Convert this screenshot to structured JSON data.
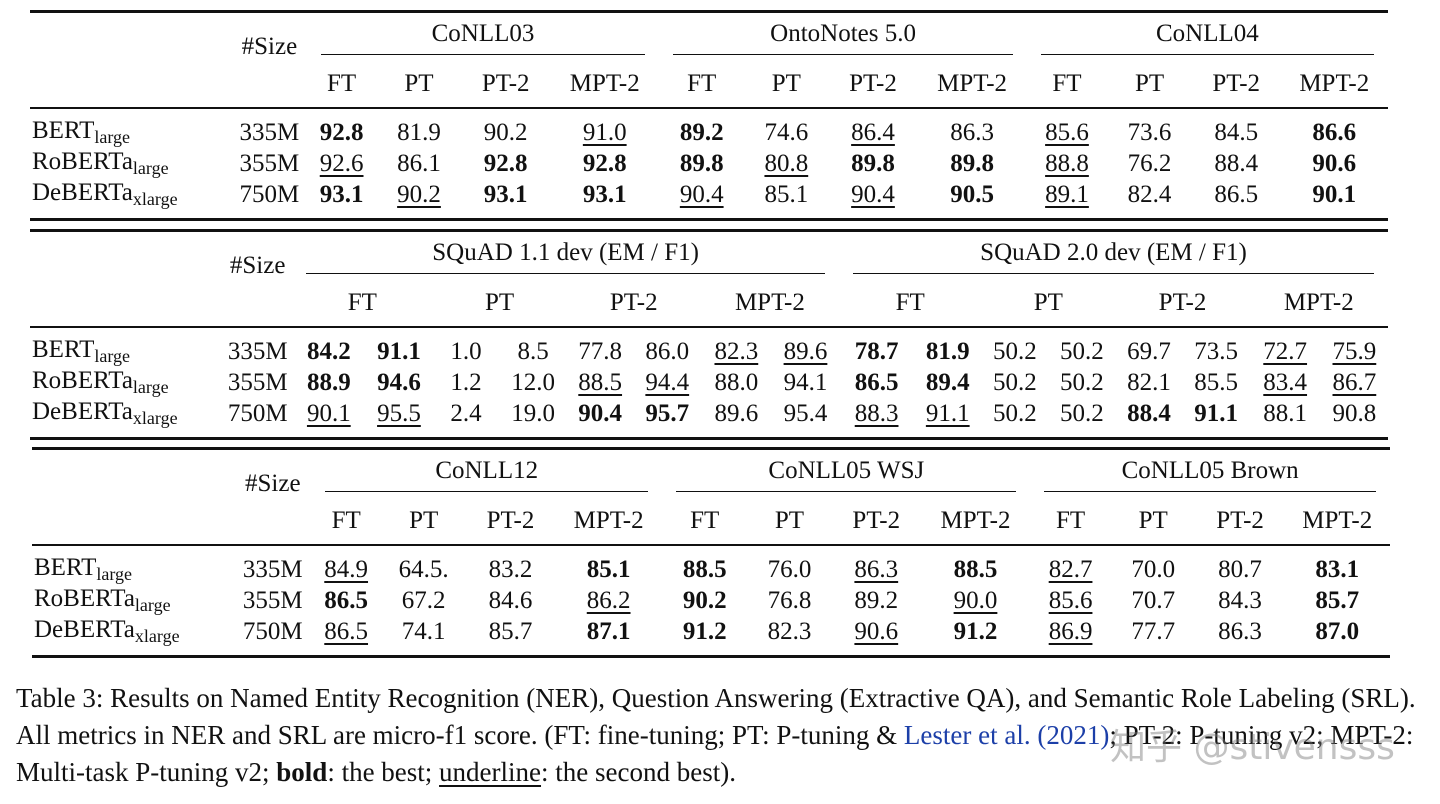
{
  "table1": {
    "size_header": "#Size",
    "groups": [
      "CoNLL03",
      "OntoNotes 5.0",
      "CoNLL04"
    ],
    "methods": [
      "FT",
      "PT",
      "PT-2",
      "MPT-2"
    ],
    "rows": [
      {
        "model": "BERT",
        "sub": "large",
        "size": "335M",
        "cells": [
          [
            "92.8",
            "b"
          ],
          [
            "81.9",
            ""
          ],
          [
            "90.2",
            ""
          ],
          [
            "91.0",
            "u"
          ],
          [
            "89.2",
            "b"
          ],
          [
            "74.6",
            ""
          ],
          [
            "86.4",
            "u"
          ],
          [
            "86.3",
            ""
          ],
          [
            "85.6",
            "u"
          ],
          [
            "73.6",
            ""
          ],
          [
            "84.5",
            ""
          ],
          [
            "86.6",
            "b"
          ]
        ]
      },
      {
        "model": "RoBERTa",
        "sub": "large",
        "size": "355M",
        "cells": [
          [
            "92.6",
            "u"
          ],
          [
            "86.1",
            ""
          ],
          [
            "92.8",
            "b"
          ],
          [
            "92.8",
            "b"
          ],
          [
            "89.8",
            "b"
          ],
          [
            "80.8",
            "u"
          ],
          [
            "89.8",
            "b"
          ],
          [
            "89.8",
            "b"
          ],
          [
            "88.8",
            "u"
          ],
          [
            "76.2",
            ""
          ],
          [
            "88.4",
            ""
          ],
          [
            "90.6",
            "b"
          ]
        ]
      },
      {
        "model": "DeBERTa",
        "sub": "xlarge",
        "size": "750M",
        "cells": [
          [
            "93.1",
            "b"
          ],
          [
            "90.2",
            "u"
          ],
          [
            "93.1",
            "b"
          ],
          [
            "93.1",
            "b"
          ],
          [
            "90.4",
            "u"
          ],
          [
            "85.1",
            ""
          ],
          [
            "90.4",
            "u"
          ],
          [
            "90.5",
            "b"
          ],
          [
            "89.1",
            "u"
          ],
          [
            "82.4",
            ""
          ],
          [
            "86.5",
            ""
          ],
          [
            "90.1",
            "b"
          ]
        ]
      }
    ]
  },
  "table2": {
    "size_header": "#Size",
    "groups": [
      "SQuAD 1.1 dev (EM / F1)",
      "SQuAD 2.0 dev (EM / F1)"
    ],
    "methods": [
      "FT",
      "PT",
      "PT-2",
      "MPT-2"
    ],
    "rows": [
      {
        "model": "BERT",
        "sub": "large",
        "size": "335M",
        "cells": [
          [
            "84.2",
            "b"
          ],
          [
            "91.1",
            "b"
          ],
          [
            "1.0",
            ""
          ],
          [
            "8.5",
            ""
          ],
          [
            "77.8",
            ""
          ],
          [
            "86.0",
            ""
          ],
          [
            "82.3",
            "u"
          ],
          [
            "89.6",
            "u"
          ],
          [
            "78.7",
            "b"
          ],
          [
            "81.9",
            "b"
          ],
          [
            "50.2",
            ""
          ],
          [
            "50.2",
            ""
          ],
          [
            "69.7",
            ""
          ],
          [
            "73.5",
            ""
          ],
          [
            "72.7",
            "u"
          ],
          [
            "75.9",
            "u"
          ]
        ]
      },
      {
        "model": "RoBERTa",
        "sub": "large",
        "size": "355M",
        "cells": [
          [
            "88.9",
            "b"
          ],
          [
            "94.6",
            "b"
          ],
          [
            "1.2",
            ""
          ],
          [
            "12.0",
            ""
          ],
          [
            "88.5",
            "u"
          ],
          [
            "94.4",
            "u"
          ],
          [
            "88.0",
            ""
          ],
          [
            "94.1",
            ""
          ],
          [
            "86.5",
            "b"
          ],
          [
            "89.4",
            "b"
          ],
          [
            "50.2",
            ""
          ],
          [
            "50.2",
            ""
          ],
          [
            "82.1",
            ""
          ],
          [
            "85.5",
            ""
          ],
          [
            "83.4",
            "u"
          ],
          [
            "86.7",
            "u"
          ]
        ]
      },
      {
        "model": "DeBERTa",
        "sub": "xlarge",
        "size": "750M",
        "cells": [
          [
            "90.1",
            "u"
          ],
          [
            "95.5",
            "u"
          ],
          [
            "2.4",
            ""
          ],
          [
            "19.0",
            ""
          ],
          [
            "90.4",
            "b"
          ],
          [
            "95.7",
            "b"
          ],
          [
            "89.6",
            ""
          ],
          [
            "95.4",
            ""
          ],
          [
            "88.3",
            "u"
          ],
          [
            "91.1",
            "u"
          ],
          [
            "50.2",
            ""
          ],
          [
            "50.2",
            ""
          ],
          [
            "88.4",
            "b"
          ],
          [
            "91.1",
            "b"
          ],
          [
            "88.1",
            ""
          ],
          [
            "90.8",
            ""
          ]
        ]
      }
    ]
  },
  "table3": {
    "size_header": "#Size",
    "groups": [
      "CoNLL12",
      "CoNLL05 WSJ",
      "CoNLL05 Brown"
    ],
    "methods": [
      "FT",
      "PT",
      "PT-2",
      "MPT-2"
    ],
    "rows": [
      {
        "model": "BERT",
        "sub": "large",
        "size": "335M",
        "cells": [
          [
            "84.9",
            "u"
          ],
          [
            "64.5.",
            ""
          ],
          [
            "83.2",
            ""
          ],
          [
            "85.1",
            "b"
          ],
          [
            "88.5",
            "b"
          ],
          [
            "76.0",
            ""
          ],
          [
            "86.3",
            "u"
          ],
          [
            "88.5",
            "b"
          ],
          [
            "82.7",
            "u"
          ],
          [
            "70.0",
            ""
          ],
          [
            "80.7",
            ""
          ],
          [
            "83.1",
            "b"
          ]
        ]
      },
      {
        "model": "RoBERTa",
        "sub": "large",
        "size": "355M",
        "cells": [
          [
            "86.5",
            "b"
          ],
          [
            "67.2",
            ""
          ],
          [
            "84.6",
            ""
          ],
          [
            "86.2",
            "u"
          ],
          [
            "90.2",
            "b"
          ],
          [
            "76.8",
            ""
          ],
          [
            "89.2",
            ""
          ],
          [
            "90.0",
            "u"
          ],
          [
            "85.6",
            "u"
          ],
          [
            "70.7",
            ""
          ],
          [
            "84.3",
            ""
          ],
          [
            "85.7",
            "b"
          ]
        ]
      },
      {
        "model": "DeBERTa",
        "sub": "xlarge",
        "size": "750M",
        "cells": [
          [
            "86.5",
            "u"
          ],
          [
            "74.1",
            ""
          ],
          [
            "85.7",
            ""
          ],
          [
            "87.1",
            "b"
          ],
          [
            "91.2",
            "b"
          ],
          [
            "82.3",
            ""
          ],
          [
            "90.6",
            "u"
          ],
          [
            "91.2",
            "b"
          ],
          [
            "86.9",
            "u"
          ],
          [
            "77.7",
            ""
          ],
          [
            "86.3",
            ""
          ],
          [
            "87.0",
            "b"
          ]
        ]
      }
    ]
  },
  "caption": {
    "part1": "Table 3: Results on Named Entity Recognition (NER), Question Answering (Extractive QA), and Semantic Role Labeling (SRL). All metrics in NER and SRL are micro-f1 score. (FT: fine-tuning; PT: P-tuning & ",
    "cite": "Lester et al. (2021)",
    "part2": "; PT-2: P-tuning v2; MPT-2: Multi-task P-tuning v2; ",
    "bold_word": "bold",
    "part3": ": the best; ",
    "underline_word": "underline",
    "part4": ": the second best)."
  },
  "watermark": "知乎 @stivensss"
}
